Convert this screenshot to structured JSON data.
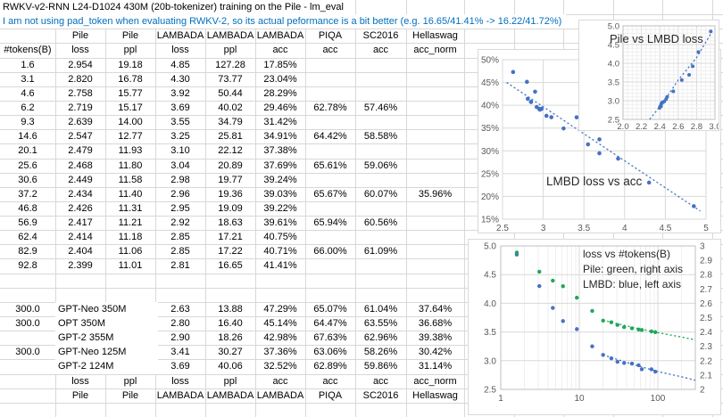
{
  "title": "RWKV-v2-RNN L24-D1024 430M (20b-tokenizer) training on the Pile - lm_eval",
  "note": "I am not using pad_token when evaluating RWKV-2, so its actual peformance is a bit better (e.g. 16.65/41.41% -> 16.22/41.72%)",
  "colors": {
    "note_text": "#0070C0",
    "scatter_blue": "#4472C4",
    "scatter_green": "#1EA75A",
    "gridline": "#D8D8D8",
    "chart_grid_major": "#D9D9D9",
    "chart_grid_minor": "#EFEFEF",
    "tick_text": "#595959",
    "chart_text": "#262626"
  },
  "table": {
    "group_header": [
      "",
      "Pile",
      "Pile",
      "LAMBADA",
      "LAMBADA",
      "LAMBADA",
      "PIQA",
      "SC2016",
      "Hellaswag"
    ],
    "col_header": [
      "#tokens(B)",
      "loss",
      "ppl",
      "loss",
      "ppl",
      "acc",
      "acc",
      "acc",
      "acc_norm"
    ],
    "rows": [
      [
        "1.6",
        "2.954",
        "19.18",
        "4.85",
        "127.28",
        "17.85%",
        "",
        "",
        ""
      ],
      [
        "3.1",
        "2.820",
        "16.78",
        "4.30",
        "73.77",
        "23.04%",
        "",
        "",
        ""
      ],
      [
        "4.6",
        "2.758",
        "15.77",
        "3.92",
        "50.44",
        "28.29%",
        "",
        "",
        ""
      ],
      [
        "6.2",
        "2.719",
        "15.17",
        "3.69",
        "40.02",
        "29.46%",
        "62.78%",
        "57.46%",
        ""
      ],
      [
        "9.3",
        "2.639",
        "14.00",
        "3.55",
        "34.79",
        "31.42%",
        "",
        "",
        ""
      ],
      [
        "14.6",
        "2.547",
        "12.77",
        "3.25",
        "25.81",
        "34.91%",
        "64.42%",
        "58.58%",
        ""
      ],
      [
        "20.1",
        "2.479",
        "11.93",
        "3.10",
        "22.12",
        "37.38%",
        "",
        "",
        ""
      ],
      [
        "25.6",
        "2.468",
        "11.80",
        "3.04",
        "20.89",
        "37.69%",
        "65.61%",
        "59.06%",
        ""
      ],
      [
        "30.6",
        "2.449",
        "11.58",
        "2.98",
        "19.77",
        "39.24%",
        "",
        "",
        ""
      ],
      [
        "37.2",
        "2.434",
        "11.40",
        "2.96",
        "19.36",
        "39.03%",
        "65.67%",
        "60.07%",
        "35.96%"
      ],
      [
        "46.8",
        "2.426",
        "11.31",
        "2.95",
        "19.09",
        "39.22%",
        "",
        "",
        ""
      ],
      [
        "56.9",
        "2.417",
        "11.21",
        "2.92",
        "18.63",
        "39.61%",
        "65.94%",
        "60.56%",
        ""
      ],
      [
        "62.4",
        "2.414",
        "11.18",
        "2.85",
        "17.21",
        "40.75%",
        "",
        "",
        ""
      ],
      [
        "82.9",
        "2.404",
        "11.06",
        "2.85",
        "17.22",
        "40.71%",
        "66.00%",
        "61.09%",
        ""
      ],
      [
        "92.8",
        "2.399",
        "11.01",
        "2.81",
        "16.65",
        "41.41%",
        "",
        "",
        ""
      ]
    ],
    "baseline_rows": [
      [
        "300.0",
        "GPT-Neo 350M",
        "",
        "2.63",
        "13.88",
        "47.29%",
        "65.07%",
        "61.04%",
        "37.64%"
      ],
      [
        "300.0",
        "OPT 350M",
        "",
        "2.80",
        "16.40",
        "45.14%",
        "64.47%",
        "63.55%",
        "36.68%"
      ],
      [
        "",
        "GPT-2 355M",
        "",
        "2.90",
        "18.26",
        "42.98%",
        "67.63%",
        "62.96%",
        "39.38%"
      ],
      [
        "300.0",
        "GPT-Neo 125M",
        "",
        "3.41",
        "30.27",
        "37.36%",
        "63.06%",
        "58.26%",
        "30.42%"
      ],
      [
        "",
        "GPT-2 124M",
        "",
        "3.69",
        "40.06",
        "32.52%",
        "62.89%",
        "59.86%",
        "31.14%"
      ]
    ],
    "footer_metric": [
      "",
      "loss",
      "ppl",
      "loss",
      "ppl",
      "acc",
      "acc",
      "acc",
      "acc_norm"
    ],
    "footer_dataset": [
      "",
      "Pile",
      "Pile",
      "LAMBADA",
      "LAMBADA",
      "LAMBADA",
      "PIQA",
      "SC2016",
      "Hellaswag"
    ]
  },
  "chart_data": [
    {
      "id": "pile_vs_lmbd",
      "type": "scatter",
      "title": "Pile vs LMBD loss",
      "xlim": [
        2.0,
        3.0
      ],
      "ylim": [
        2.5,
        5.0
      ],
      "x_ticks": [
        2.0,
        2.2,
        2.4,
        2.6,
        2.8,
        3.0
      ],
      "y_ticks": [
        2.5,
        3.0,
        3.5,
        4.0,
        4.5,
        5.0
      ],
      "grid": "major+minor",
      "point_color": "#4472C4",
      "points": [
        [
          2.954,
          4.85
        ],
        [
          2.82,
          4.3
        ],
        [
          2.758,
          3.92
        ],
        [
          2.719,
          3.69
        ],
        [
          2.639,
          3.55
        ],
        [
          2.547,
          3.25
        ],
        [
          2.479,
          3.1
        ],
        [
          2.468,
          3.04
        ],
        [
          2.449,
          2.98
        ],
        [
          2.434,
          2.96
        ],
        [
          2.426,
          2.95
        ],
        [
          2.417,
          2.92
        ],
        [
          2.414,
          2.85
        ],
        [
          2.404,
          2.85
        ],
        [
          2.399,
          2.81
        ]
      ],
      "trendline": {
        "style": "dotted",
        "color": "#4472C4",
        "points": [
          [
            2.29,
            2.5
          ],
          [
            2.45,
            3.0
          ],
          [
            2.6,
            3.55
          ],
          [
            2.8,
            4.15
          ],
          [
            2.97,
            4.85
          ]
        ]
      }
    },
    {
      "id": "lmbd_loss_vs_acc",
      "type": "scatter",
      "title": "LMBD loss vs acc",
      "xlim": [
        2.5,
        5.0
      ],
      "ylim_pct": [
        15,
        50
      ],
      "x_ticks": [
        2.5,
        3,
        3.5,
        4,
        4.5,
        5
      ],
      "y_ticks_pct": [
        15,
        20,
        25,
        30,
        35,
        40,
        45,
        50
      ],
      "grid": "major",
      "point_color": "#4472C4",
      "points_pct": [
        [
          4.85,
          17.85
        ],
        [
          4.3,
          23.04
        ],
        [
          3.92,
          28.29
        ],
        [
          3.69,
          29.46
        ],
        [
          3.55,
          31.42
        ],
        [
          3.25,
          34.91
        ],
        [
          3.1,
          37.38
        ],
        [
          3.04,
          37.69
        ],
        [
          2.98,
          39.24
        ],
        [
          2.96,
          39.03
        ],
        [
          2.95,
          39.22
        ],
        [
          2.92,
          39.61
        ],
        [
          2.85,
          40.75
        ],
        [
          2.85,
          40.71
        ],
        [
          2.81,
          41.41
        ],
        [
          2.63,
          47.29
        ],
        [
          2.8,
          45.14
        ],
        [
          2.9,
          42.98
        ],
        [
          3.41,
          37.36
        ],
        [
          3.69,
          32.52
        ]
      ],
      "trendline": {
        "style": "dotted",
        "color": "#4472C4",
        "points_pct": [
          [
            2.55,
            45.0
          ],
          [
            4.93,
            16.8
          ]
        ]
      }
    },
    {
      "id": "loss_vs_tokens",
      "type": "scatter-logx",
      "annotation": [
        "loss vs #tokens(B)",
        "Pile: green, right axis",
        "LMBD: blue, left axis"
      ],
      "xlim": [
        1,
        300
      ],
      "x_ticks": [
        1,
        10,
        100
      ],
      "left_ylim": [
        2.5,
        5.0
      ],
      "left_ticks": [
        2.5,
        3.0,
        3.5,
        4.0,
        4.5,
        5.0
      ],
      "right_ylim": [
        2,
        3
      ],
      "right_ticks": [
        2,
        2.1,
        2.2,
        2.3,
        2.4,
        2.5,
        2.6,
        2.7,
        2.8,
        2.9,
        3
      ],
      "tokens": [
        1.6,
        3.1,
        4.6,
        6.2,
        9.3,
        14.6,
        20.1,
        25.6,
        30.6,
        37.2,
        46.8,
        56.9,
        62.4,
        82.9,
        92.8
      ],
      "series": [
        {
          "name": "LMBD loss",
          "axis": "left",
          "color": "#4472C4",
          "values": [
            4.85,
            4.3,
            3.92,
            3.69,
            3.55,
            3.25,
            3.1,
            3.04,
            2.98,
            2.96,
            2.95,
            2.92,
            2.85,
            2.85,
            2.81
          ],
          "trendline": [
            [
              20,
              3.1
            ],
            [
              50,
              2.93
            ],
            [
              100,
              2.81
            ],
            [
              200,
              2.72
            ],
            [
              300,
              2.66
            ]
          ]
        },
        {
          "name": "Pile loss",
          "axis": "right",
          "color": "#1EA75A",
          "values": [
            2.954,
            2.82,
            2.758,
            2.719,
            2.639,
            2.547,
            2.479,
            2.468,
            2.449,
            2.434,
            2.426,
            2.417,
            2.414,
            2.404,
            2.399
          ],
          "trendline": [
            [
              20,
              2.482
            ],
            [
              50,
              2.43
            ],
            [
              100,
              2.395
            ],
            [
              200,
              2.365
            ],
            [
              300,
              2.345
            ]
          ]
        }
      ]
    }
  ]
}
